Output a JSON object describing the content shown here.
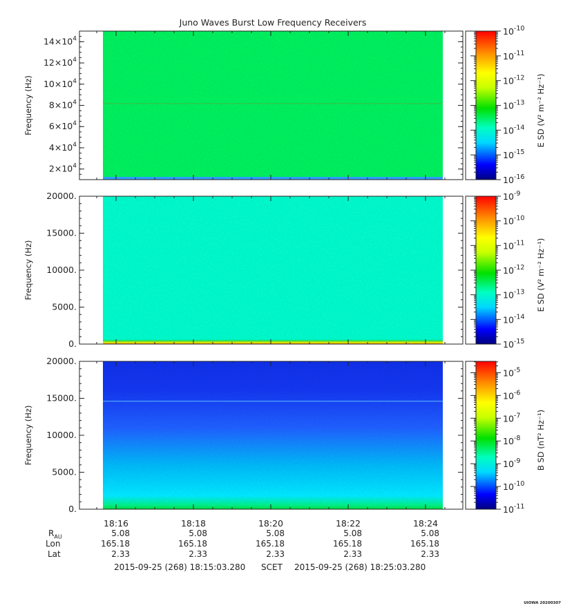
{
  "chart_data": [
    {
      "type": "heatmap",
      "title": "Juno Waves Burst Low Frequency Receivers",
      "ylabel": "Frequency (Hz)",
      "yticks": [
        "2×10^4",
        "4×10^4",
        "6×10^4",
        "8×10^4",
        "10×10^4",
        "12×10^4",
        "14×10^4"
      ],
      "ylim": [
        10000,
        150000
      ],
      "colorbar_label": "E SD (V² m⁻² Hz⁻¹)",
      "colorbar_ticks": [
        "10^-16",
        "10^-15",
        "10^-14",
        "10^-13",
        "10^-12",
        "10^-11",
        "10^-10"
      ],
      "colorbar_range": [
        -16,
        -10
      ],
      "dominant_level": -13.5,
      "notes": "nearly uniform green spectrogram; faint line near 8.2×10^4 Hz"
    },
    {
      "type": "heatmap",
      "ylabel": "Frequency (Hz)",
      "yticks": [
        "0.",
        "5000.",
        "10000.",
        "15000.",
        "20000."
      ],
      "ylim": [
        0,
        20000
      ],
      "colorbar_label": "E SD (V² m⁻² Hz⁻¹)",
      "colorbar_ticks": [
        "10^-15",
        "10^-14",
        "10^-13",
        "10^-12",
        "10^-11",
        "10^-10",
        "10^-9"
      ],
      "colorbar_range": [
        -15,
        -9
      ],
      "dominant_level": -13,
      "notes": "uniform cyan-green; yellow/orange band below ~500 Hz"
    },
    {
      "type": "heatmap",
      "ylabel": "Frequency (Hz)",
      "yticks": [
        "0.",
        "5000.",
        "10000.",
        "15000.",
        "20000."
      ],
      "ylim": [
        0,
        20000
      ],
      "colorbar_label": "B SD (nT² Hz⁻¹)",
      "colorbar_ticks": [
        "10^-11",
        "10^-10",
        "10^-9",
        "10^-8",
        "10^-7",
        "10^-6",
        "10^-5"
      ],
      "colorbar_range": [
        -11,
        -4.5
      ],
      "dominant_level": -10.2,
      "notes": "blue at high frequency, cyan at low frequency, green band below ~1000 Hz, faint line near 14600 Hz"
    }
  ],
  "x_axis": {
    "time_ticks": [
      "18:16",
      "18:18",
      "18:20",
      "18:22",
      "18:24"
    ],
    "ephemeris_labels": [
      "R",
      "AU",
      "Lon",
      "Lat"
    ],
    "R_values": [
      "5.08",
      "5.08",
      "5.08",
      "5.08",
      "5.08"
    ],
    "Lon_values": [
      "165.18",
      "165.18",
      "165.18",
      "165.18",
      "165.18"
    ],
    "Lat_values": [
      "2.33",
      "2.33",
      "2.33",
      "2.33",
      "2.33"
    ],
    "start_time": "2015-09-25 (268) 18:15:03.280",
    "scet_label": "SCET",
    "end_time": "2015-09-25 (268) 18:25:03.280"
  },
  "footer": {
    "stamp": "UIOWA 20200307"
  }
}
